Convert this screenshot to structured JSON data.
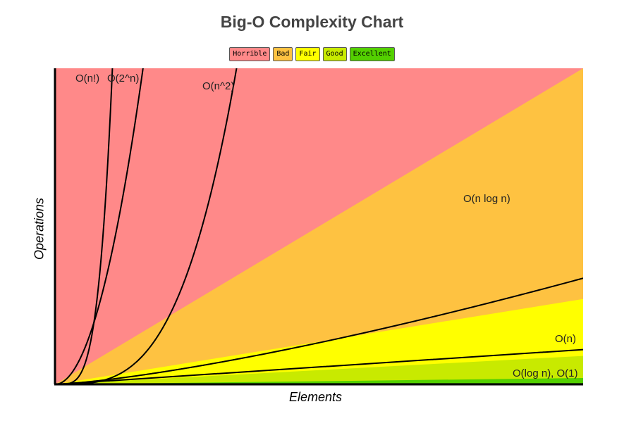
{
  "chart_data": {
    "type": "line",
    "title": "Big-O Complexity Chart",
    "xlabel": "Elements",
    "ylabel": "Operations",
    "xlim": [
      0,
      100
    ],
    "ylim": [
      0,
      100
    ],
    "legend": {
      "placement": "top-center",
      "entries": [
        {
          "label": "Horrible",
          "color": "#ff8989"
        },
        {
          "label": "Bad",
          "color": "#fec241"
        },
        {
          "label": "Fair",
          "color": "#ffff00"
        },
        {
          "label": "Good",
          "color": "#c8ea00"
        },
        {
          "label": "Excellent",
          "color": "#53d000"
        }
      ]
    },
    "regions": [
      {
        "name": "Horrible",
        "color": "#ff8989",
        "upper_at_xmax": 100
      },
      {
        "name": "Bad",
        "color": "#fec241",
        "upper_at_xmax": 100
      },
      {
        "name": "Fair",
        "color": "#ffff00",
        "upper_at_xmax": 27
      },
      {
        "name": "Good",
        "color": "#c8ea00",
        "upper_at_xmax": 9
      },
      {
        "name": "Excellent",
        "color": "#53d000",
        "upper_at_xmax": 2
      }
    ],
    "series": [
      {
        "name": "O(n!)",
        "label": "O(n!)",
        "fn": "factorial"
      },
      {
        "name": "O(2^n)",
        "label": "O(2^n)",
        "fn": "exp2"
      },
      {
        "name": "O(n^2)",
        "label": "O(n^2)",
        "fn": "square"
      },
      {
        "name": "O(n log n)",
        "label": "O(n log n)",
        "fn": "nlogn"
      },
      {
        "name": "O(n)",
        "label": "O(n)",
        "fn": "linear"
      },
      {
        "name": "O(log n), O(1)",
        "label": "O(log n), O(1)",
        "fn": "flat"
      }
    ],
    "grid": false
  }
}
